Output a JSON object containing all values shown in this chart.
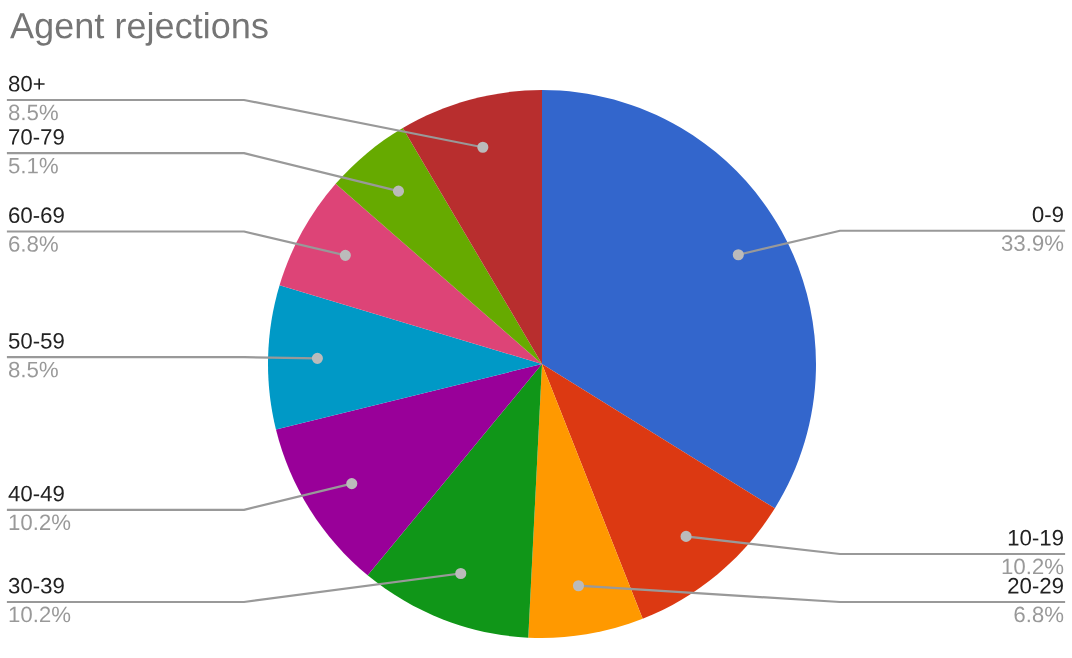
{
  "chart_data": {
    "type": "pie",
    "title": "Agent rejections",
    "categories": [
      "0-9",
      "10-19",
      "20-29",
      "30-39",
      "40-49",
      "50-59",
      "60-69",
      "70-79",
      "80+"
    ],
    "values": [
      33.9,
      10.2,
      6.8,
      10.2,
      10.2,
      8.5,
      6.8,
      5.1,
      8.5
    ],
    "value_labels": [
      "33.9%",
      "10.2%",
      "6.8%",
      "10.2%",
      "10.2%",
      "8.5%",
      "6.8%",
      "5.1%",
      "8.5%"
    ],
    "colors": [
      "#3366cc",
      "#dc3912",
      "#ff9900",
      "#109618",
      "#990099",
      "#0099c6",
      "#dd4477",
      "#66aa00",
      "#b82e2e"
    ],
    "legend": false
  }
}
